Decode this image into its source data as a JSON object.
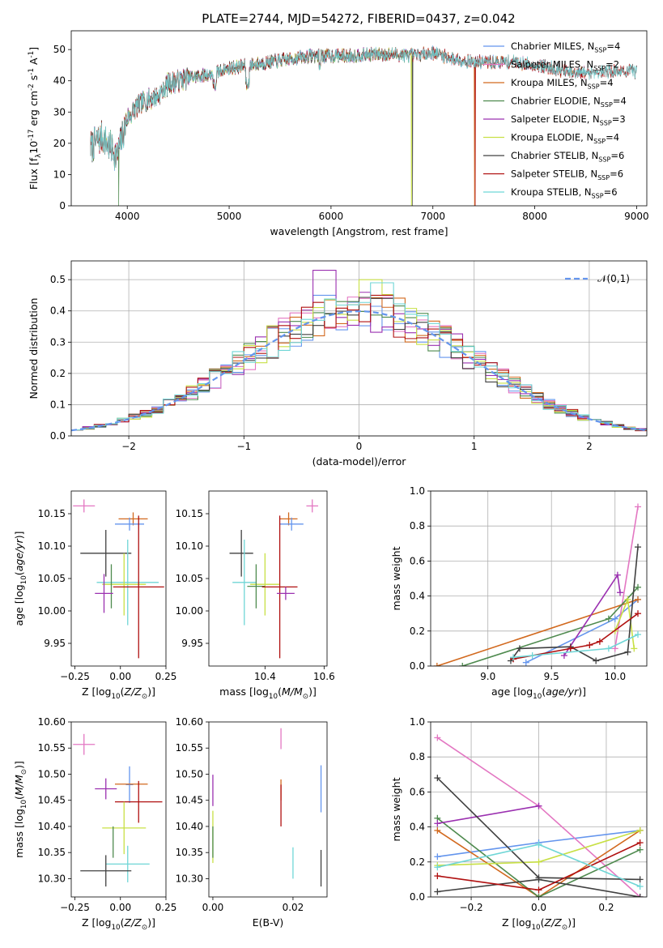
{
  "chart_data": [
    {
      "id": "spectrum",
      "type": "line",
      "title": "PLATE=2744, MJD=54272, FIBERID=0437, z=0.042",
      "xlabel": "wavelength [Angstrom, rest frame]",
      "ylabel": "Flux [f$_\\lambda$10$^{-17}$ erg cm$^{-2}$ s$^{-1}$ A$^{-1}$]",
      "xlim": [
        3450,
        9100
      ],
      "ylim": [
        0,
        56
      ],
      "xticks": [
        4000,
        5000,
        6000,
        7000,
        8000,
        9000
      ],
      "yticks": [
        0,
        10,
        20,
        30,
        40,
        50
      ],
      "legend_position": "upper right",
      "continuum": {
        "x": [
          3650,
          3750,
          3850,
          3900,
          3950,
          4000,
          4100,
          4200,
          4300,
          4400,
          4600,
          4800,
          5000,
          5200,
          5400,
          5600,
          5800,
          6000,
          6200,
          6400,
          6600,
          6800,
          7000,
          7200,
          7400,
          7600,
          7800,
          8000,
          8200,
          8400,
          8600,
          8800
        ],
        "y": [
          19,
          22,
          18,
          16,
          22,
          28,
          32,
          34,
          35,
          39,
          41,
          42,
          44,
          45,
          46,
          47,
          48,
          48,
          48,
          48.5,
          48.5,
          48,
          49,
          47,
          46,
          46,
          46,
          45,
          44,
          42,
          43,
          43
        ]
      },
      "series": [
        {
          "name": "Chabrier MILES, N$_{SSP}$=4",
          "color": "#6495ed",
          "xmax": 8500,
          "drop_at": null
        },
        {
          "name": "Salpeter MILES, N$_{SSP}$=2",
          "color": "#e377c2",
          "xmax": 8500,
          "drop_at": null
        },
        {
          "name": "Kroupa MILES, N$_{SSP}$=4",
          "color": "#d2691e",
          "xmax": 8500,
          "drop_at": 7410
        },
        {
          "name": "Chabrier ELODIE, N$_{SSP}$=4",
          "color": "#4e8a4e",
          "xmax": 6800,
          "drop_at": 3915
        },
        {
          "name": "Salpeter ELODIE, N$_{SSP}$=3",
          "color": "#9b30b0",
          "xmax": 6800,
          "drop_at": null
        },
        {
          "name": "Kroupa ELODIE, N$_{SSP}$=4",
          "color": "#c8e045",
          "xmax": 6800,
          "drop_at": 6790
        },
        {
          "name": "Chabrier STELIB, N$_{SSP}$=6",
          "color": "#404040",
          "xmax": 9000,
          "drop_at": 6800
        },
        {
          "name": "Salpeter STELIB, N$_{SSP}$=6",
          "color": "#b01010",
          "xmax": 9000,
          "drop_at": 7415
        },
        {
          "name": "Kroupa STELIB, N$_{SSP}$=6",
          "color": "#6fd6d6",
          "xmax": 9000,
          "drop_at": null
        }
      ]
    },
    {
      "id": "residual-histogram",
      "type": "line",
      "xlabel": "(data-model)/error",
      "ylabel": "Normed distribution",
      "xlim": [
        -2.5,
        2.5
      ],
      "ylim": [
        0,
        0.56
      ],
      "xticks": [
        -2,
        -1,
        0,
        1,
        2
      ],
      "yticks": [
        0.0,
        0.1,
        0.2,
        0.3,
        0.4,
        0.5
      ],
      "grid": true,
      "legend_position": "upper right",
      "reference_curve": {
        "name": "$\\mathcal{N}(0,1)$",
        "color": "#6495ed",
        "style": "dashed",
        "mean": 0,
        "sigma": 1
      },
      "bin_width": 0.1,
      "series_peaks": [
        {
          "color": "#6495ed",
          "peak_bin": -0.3,
          "peak": 0.45
        },
        {
          "color": "#e377c2",
          "peak_bin": 0.1,
          "peak": 0.44
        },
        {
          "color": "#d2691e",
          "peak_bin": 0.0,
          "peak": 0.42
        },
        {
          "color": "#4e8a4e",
          "peak_bin": -0.1,
          "peak": 0.43
        },
        {
          "color": "#9b30b0",
          "peak_bin": -0.3,
          "peak": 0.53
        },
        {
          "color": "#c8e045",
          "peak_bin": 0.1,
          "peak": 0.5
        },
        {
          "color": "#404040",
          "peak_bin": 0.2,
          "peak": 0.44
        },
        {
          "color": "#b01010",
          "peak_bin": 0.2,
          "peak": 0.45
        },
        {
          "color": "#6fd6d6",
          "peak_bin": 0.2,
          "peak": 0.49
        }
      ]
    },
    {
      "id": "age-vs-Z",
      "type": "scatter",
      "xlabel": "Z [log$_{10}$($Z/Z_\\odot$)]",
      "ylabel": "age  [log$_{10}$($age/yr$)]",
      "xlim": [
        -0.27,
        0.25
      ],
      "ylim": [
        9.915,
        10.185
      ],
      "xticks": [
        -0.25,
        0.0,
        0.25
      ],
      "xticklabels": [
        "−0.25",
        "0.00",
        "0.25"
      ],
      "yticks": [
        9.95,
        10.0,
        10.05,
        10.1,
        10.15
      ],
      "points": [
        {
          "color": "#e377c2",
          "x": -0.2,
          "xerr": 0.06,
          "y": 10.162,
          "yerr": 0.01
        },
        {
          "color": "#d2691e",
          "x": 0.07,
          "xerr": 0.08,
          "y": 10.142,
          "yerr": 0.01
        },
        {
          "color": "#6495ed",
          "x": 0.05,
          "xerr": 0.08,
          "y": 10.134,
          "yerr": 0.01
        },
        {
          "color": "#404040",
          "x": -0.08,
          "xerr": 0.14,
          "y": 10.089,
          "yerr": 0.036
        },
        {
          "color": "#6fd6d6",
          "x": 0.04,
          "xerr": 0.17,
          "y": 10.044,
          "yerr": 0.066
        },
        {
          "color": "#c8e045",
          "x": 0.02,
          "xerr": 0.12,
          "y": 10.041,
          "yerr": 0.048
        },
        {
          "color": "#4e8a4e",
          "x": -0.05,
          "xerr": 0.0,
          "y": 10.038,
          "yerr": 0.034
        },
        {
          "color": "#b01010",
          "x": 0.1,
          "xerr": 0.14,
          "y": 10.037,
          "yerr": 0.11
        },
        {
          "color": "#9b30b0",
          "x": -0.09,
          "xerr": 0.05,
          "y": 10.027,
          "yerr": 0.03
        }
      ]
    },
    {
      "id": "age-vs-mass",
      "type": "scatter",
      "xlabel": "mass [log$_{10}$($M/M_\\odot$)]",
      "ylabel": "",
      "xlim": [
        10.21,
        10.61
      ],
      "ylim": [
        9.915,
        10.185
      ],
      "xticks": [
        10.4,
        10.6
      ],
      "xticklabels": [
        "10.4",
        "10.6"
      ],
      "yticks": [
        9.95,
        10.0,
        10.05,
        10.1,
        10.15
      ],
      "points": [
        {
          "color": "#e377c2",
          "x": 10.56,
          "xerr": 0.02,
          "y": 10.162,
          "yerr": 0.01
        },
        {
          "color": "#d2691e",
          "x": 10.48,
          "xerr": 0.03,
          "y": 10.142,
          "yerr": 0.01
        },
        {
          "color": "#6495ed",
          "x": 10.49,
          "xerr": 0.04,
          "y": 10.134,
          "yerr": 0.01
        },
        {
          "color": "#404040",
          "x": 10.32,
          "xerr": 0.04,
          "y": 10.089,
          "yerr": 0.036
        },
        {
          "color": "#6fd6d6",
          "x": 10.33,
          "xerr": 0.04,
          "y": 10.044,
          "yerr": 0.066
        },
        {
          "color": "#c8e045",
          "x": 10.4,
          "xerr": 0.05,
          "y": 10.041,
          "yerr": 0.048
        },
        {
          "color": "#4e8a4e",
          "x": 10.37,
          "xerr": 0.03,
          "y": 10.038,
          "yerr": 0.034
        },
        {
          "color": "#b01010",
          "x": 10.45,
          "xerr": 0.06,
          "y": 10.037,
          "yerr": 0.11
        },
        {
          "color": "#9b30b0",
          "x": 10.47,
          "xerr": 0.03,
          "y": 10.027,
          "yerr": 0.01
        }
      ]
    },
    {
      "id": "weight-vs-age",
      "type": "line",
      "xlabel": "age  [log$_{10}$($age/yr$)]",
      "ylabel": "mass weight",
      "xlim": [
        8.55,
        10.25
      ],
      "ylim": [
        0,
        1.0
      ],
      "xticks": [
        9.0,
        9.5,
        10.0
      ],
      "xticklabels": [
        "9.0",
        "9.5",
        "10.0"
      ],
      "yticks": [
        0.0,
        0.2,
        0.4,
        0.6,
        0.8,
        1.0
      ],
      "grid": true,
      "series": [
        {
          "color": "#6495ed",
          "x": [
            9.3,
            10.0,
            10.18
          ],
          "y": [
            0.02,
            0.27,
            0.38
          ]
        },
        {
          "color": "#e377c2",
          "x": [
            10.0,
            10.18
          ],
          "y": [
            0.1,
            0.91
          ]
        },
        {
          "color": "#d2691e",
          "x": [
            8.6,
            10.18
          ],
          "y": [
            0.0,
            0.38
          ]
        },
        {
          "color": "#4e8a4e",
          "x": [
            8.8,
            9.95,
            10.18
          ],
          "y": [
            0.0,
            0.27,
            0.45
          ]
        },
        {
          "color": "#9b30b0",
          "x": [
            9.6,
            10.02,
            10.04
          ],
          "y": [
            0.06,
            0.52,
            0.42
          ]
        },
        {
          "color": "#c8e045",
          "x": [
            10.0,
            10.1,
            10.15
          ],
          "y": [
            0.2,
            0.38,
            0.1
          ]
        },
        {
          "color": "#404040",
          "x": [
            9.18,
            9.25,
            9.65,
            9.85,
            10.1,
            10.18
          ],
          "y": [
            0.03,
            0.1,
            0.11,
            0.03,
            0.08,
            0.68
          ]
        },
        {
          "color": "#b01010",
          "x": [
            9.2,
            9.65,
            9.8,
            9.88,
            10.18
          ],
          "y": [
            0.04,
            0.1,
            0.12,
            0.14,
            0.3
          ]
        },
        {
          "color": "#6fd6d6",
          "x": [
            9.2,
            9.35,
            9.95,
            10.18
          ],
          "y": [
            0.05,
            0.06,
            0.1,
            0.18
          ]
        }
      ]
    },
    {
      "id": "mass-vs-Z",
      "type": "scatter",
      "xlabel": "Z [log$_{10}$($Z/Z_\\odot$)]",
      "ylabel": "mass [log$_{10}$($M/M_\\odot$)]",
      "xlim": [
        -0.27,
        0.25
      ],
      "ylim": [
        10.265,
        10.6
      ],
      "xticks": [
        -0.25,
        0.0,
        0.25
      ],
      "xticklabels": [
        "−0.25",
        "0.00",
        "0.25"
      ],
      "yticks": [
        10.3,
        10.35,
        10.4,
        10.45,
        10.5,
        10.55,
        10.6
      ],
      "points": [
        {
          "color": "#e377c2",
          "x": -0.2,
          "xerr": 0.06,
          "y": 10.557,
          "yerr": 0.02
        },
        {
          "color": "#6495ed",
          "x": 0.05,
          "xerr": 0.02,
          "y": 10.48,
          "yerr": 0.035
        },
        {
          "color": "#d2691e",
          "x": 0.06,
          "xerr": 0.09,
          "y": 10.481,
          "yerr": 0.0
        },
        {
          "color": "#9b30b0",
          "x": -0.08,
          "xerr": 0.06,
          "y": 10.472,
          "yerr": 0.02
        },
        {
          "color": "#b01010",
          "x": 0.1,
          "xerr": 0.13,
          "y": 10.447,
          "yerr": 0.04
        },
        {
          "color": "#c8e045",
          "x": 0.02,
          "xerr": 0.12,
          "y": 10.397,
          "yerr": 0.05
        },
        {
          "color": "#4e8a4e",
          "x": -0.04,
          "xerr": 0.0,
          "y": 10.37,
          "yerr": 0.03
        },
        {
          "color": "#6fd6d6",
          "x": 0.04,
          "xerr": 0.12,
          "y": 10.328,
          "yerr": 0.035
        },
        {
          "color": "#404040",
          "x": -0.08,
          "xerr": 0.14,
          "y": 10.315,
          "yerr": 0.03
        }
      ]
    },
    {
      "id": "mass-vs-EBV",
      "type": "scatter",
      "xlabel": "E(B-V)",
      "ylabel": "",
      "xlim": [
        -0.001,
        0.0285
      ],
      "ylim": [
        10.265,
        10.6
      ],
      "xticks": [
        0.0,
        0.02
      ],
      "xticklabels": [
        "0.00",
        "0.02"
      ],
      "yticks": [
        10.3,
        10.35,
        10.4,
        10.45,
        10.5,
        10.55,
        10.6
      ],
      "points": [
        {
          "color": "#e377c2",
          "x": 0.017,
          "xerr": 0,
          "y": 10.568,
          "yerr": 0.02
        },
        {
          "color": "#6495ed",
          "x": 0.027,
          "xerr": 0,
          "y": 10.472,
          "yerr": 0.045
        },
        {
          "color": "#9b30b0",
          "x": 0.0,
          "xerr": 0,
          "y": 10.469,
          "yerr": 0.03
        },
        {
          "color": "#d2691e",
          "x": 0.017,
          "xerr": 0,
          "y": 10.47,
          "yerr": 0.02
        },
        {
          "color": "#b01010",
          "x": 0.017,
          "xerr": 0,
          "y": 10.44,
          "yerr": 0.04
        },
        {
          "color": "#c8e045",
          "x": 0.0,
          "xerr": 0,
          "y": 10.38,
          "yerr": 0.05
        },
        {
          "color": "#4e8a4e",
          "x": 0.0,
          "xerr": 0,
          "y": 10.37,
          "yerr": 0.03
        },
        {
          "color": "#6fd6d6",
          "x": 0.02,
          "xerr": 0,
          "y": 10.33,
          "yerr": 0.03
        },
        {
          "color": "#404040",
          "x": 0.027,
          "xerr": 0,
          "y": 10.32,
          "yerr": 0.035
        }
      ]
    },
    {
      "id": "weight-vs-Z",
      "type": "line",
      "xlabel": "Z [log$_{10}$($Z/Z_\\odot$)]",
      "ylabel": "mass weight",
      "xlim": [
        -0.32,
        0.32
      ],
      "ylim": [
        0,
        1.0
      ],
      "xticks": [
        -0.2,
        0.0,
        0.2
      ],
      "xticklabels": [
        "−0.2",
        "0.0",
        "0.2"
      ],
      "yticks": [
        0.0,
        0.2,
        0.4,
        0.6,
        0.8,
        1.0
      ],
      "grid": true,
      "series": [
        {
          "color": "#6495ed",
          "x": [
            -0.3,
            0.0,
            0.3
          ],
          "y": [
            0.23,
            0.31,
            0.38
          ]
        },
        {
          "color": "#e377c2",
          "x": [
            -0.3,
            0.0,
            0.3
          ],
          "y": [
            0.91,
            0.52,
            0.0
          ]
        },
        {
          "color": "#d2691e",
          "x": [
            -0.3,
            0.0,
            0.3
          ],
          "y": [
            0.38,
            0.0,
            0.38
          ]
        },
        {
          "color": "#4e8a4e",
          "x": [
            -0.3,
            0.0,
            0.3
          ],
          "y": [
            0.45,
            0.0,
            0.27
          ]
        },
        {
          "color": "#9b30b0",
          "x": [
            -0.3,
            0.0
          ],
          "y": [
            0.42,
            0.52
          ]
        },
        {
          "color": "#c8e045",
          "x": [
            -0.3,
            0.0,
            0.3
          ],
          "y": [
            0.18,
            0.2,
            0.38
          ]
        },
        {
          "color": "#404040",
          "x": [
            -0.3,
            0.0,
            0.3
          ],
          "y": [
            0.68,
            0.11,
            0.1
          ]
        },
        {
          "color": "#404040",
          "x": [
            -0.3,
            0.0,
            0.3
          ],
          "y": [
            0.03,
            0.1,
            0.0
          ]
        },
        {
          "color": "#b01010",
          "x": [
            -0.3,
            0.0,
            0.3
          ],
          "y": [
            0.12,
            0.04,
            0.31
          ]
        },
        {
          "color": "#6fd6d6",
          "x": [
            -0.3,
            0.0,
            0.3
          ],
          "y": [
            0.17,
            0.3,
            0.06
          ]
        }
      ]
    }
  ]
}
